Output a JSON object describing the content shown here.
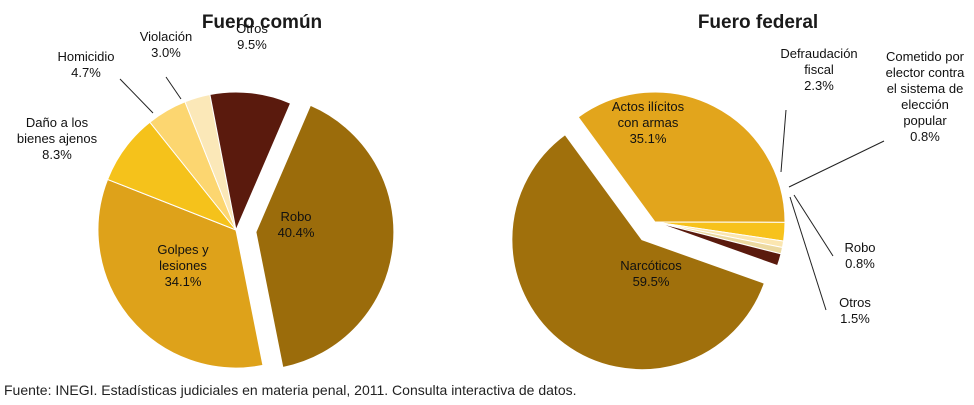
{
  "chart_data": [
    {
      "type": "pie",
      "title": "Fuero común",
      "slices": [
        {
          "label": [
            "Robo",
            "40.4%"
          ],
          "value": 40.4,
          "color": "#9b6c0b",
          "exploded": true
        },
        {
          "label": [
            "Golpes y",
            "lesiones",
            "34.1%"
          ],
          "value": 34.1,
          "color": "#dea21a",
          "exploded": false
        },
        {
          "label": [
            "Daño a los",
            "bienes ajenos",
            "8.3%"
          ],
          "value": 8.3,
          "color": "#f5c21b",
          "exploded": false
        },
        {
          "label": [
            "Homicidio",
            "4.7%"
          ],
          "value": 4.7,
          "color": "#fcd670",
          "exploded": false
        },
        {
          "label": [
            "Violación",
            "3.0%"
          ],
          "value": 3.0,
          "color": "#fbe8b8",
          "exploded": false
        },
        {
          "label": [
            "Otros",
            "9.5%"
          ],
          "value": 9.5,
          "color": "#5a1a0d",
          "exploded": false
        }
      ]
    },
    {
      "type": "pie",
      "title": "Fuero federal",
      "slices": [
        {
          "label": [
            "Actos ilícitos",
            "con armas",
            "35.1%"
          ],
          "value": 35.1,
          "color": "#e2a51c",
          "exploded": false
        },
        {
          "label": [
            "Defraudación",
            "fiscal",
            "2.3%"
          ],
          "value": 2.3,
          "color": "#f7c21c",
          "exploded": false
        },
        {
          "label": [
            "Cometido por",
            "elector contra",
            "el sistema de",
            "elección",
            "popular",
            "0.8%"
          ],
          "value": 0.8,
          "color": "#fbe6b0",
          "exploded": false
        },
        {
          "label": [
            "Robo",
            "0.8%"
          ],
          "value": 0.8,
          "color": "#ecd9a0",
          "exploded": false
        },
        {
          "label": [
            "Otros",
            "1.5%"
          ],
          "value": 1.5,
          "color": "#5a1a0d",
          "exploded": false
        },
        {
          "label": [
            "Narcóticos",
            "59.5%"
          ],
          "value": 59.5,
          "color": "#a0700c",
          "exploded": true
        }
      ]
    }
  ],
  "source": "Fuente: INEGI. Estadísticas judiciales en materia penal, 2011. Consulta interactiva de datos."
}
